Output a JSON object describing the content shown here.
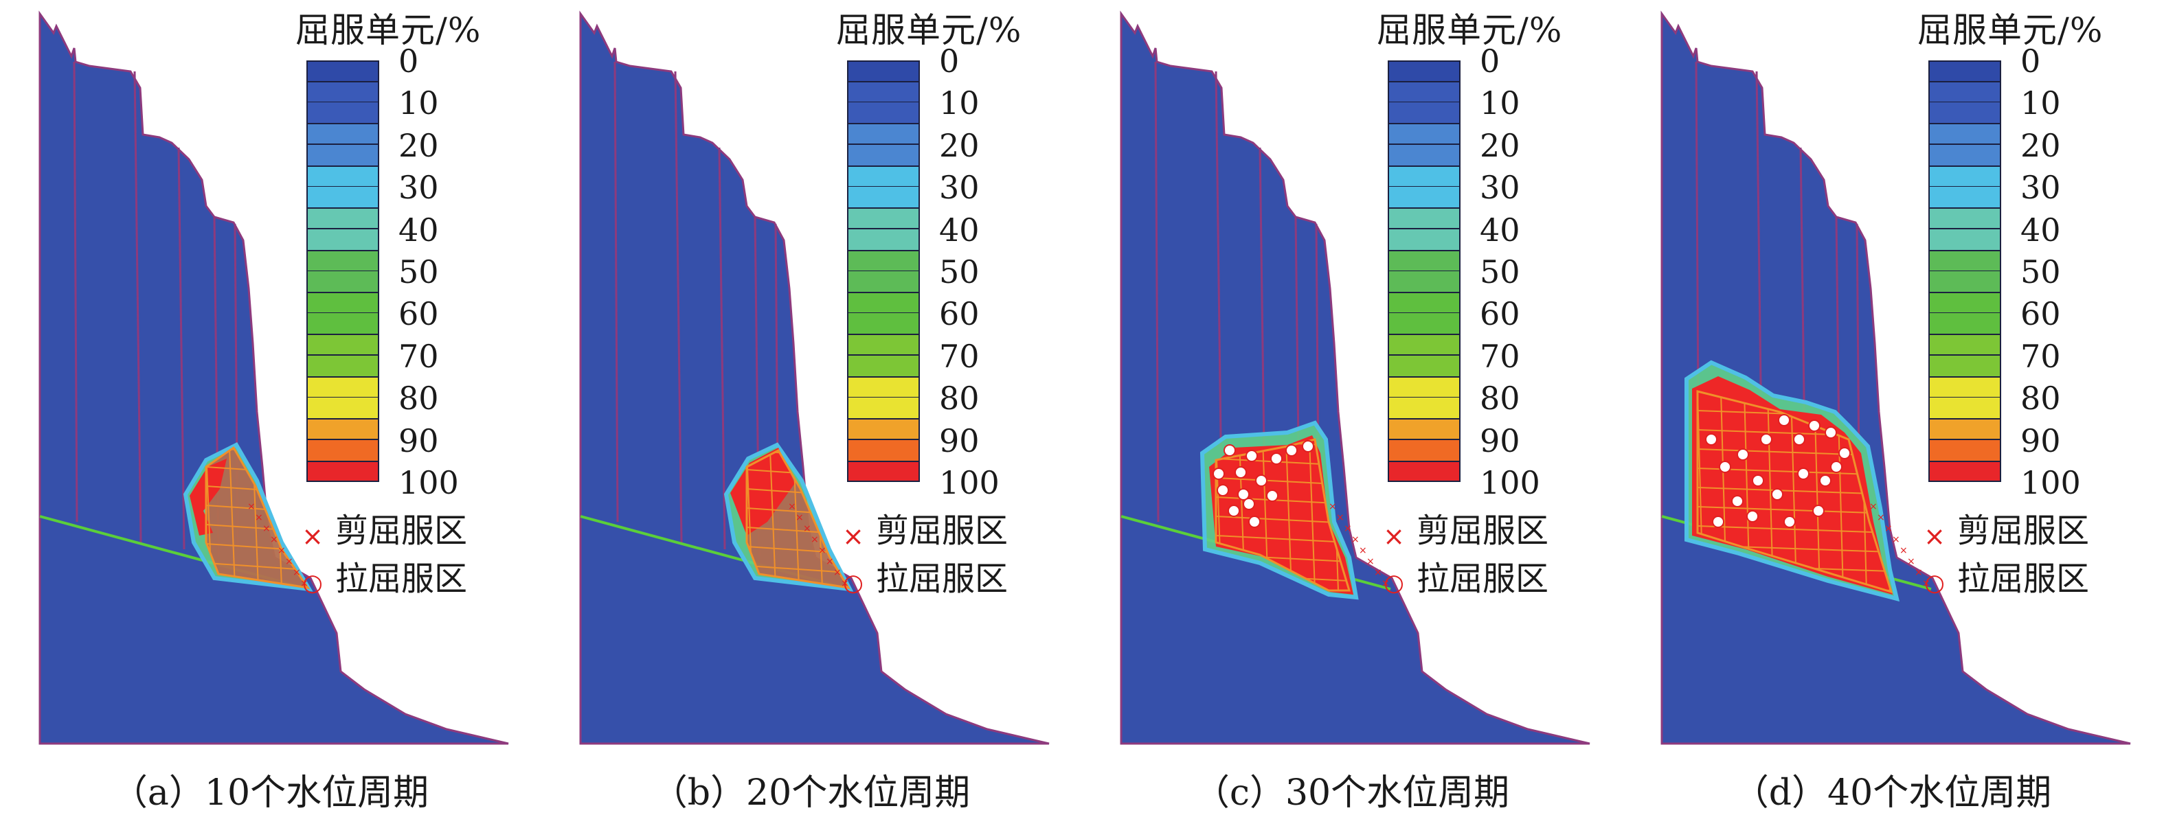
{
  "legend": {
    "title": "屈服单元/%",
    "ticks": [
      "0",
      "10",
      "20",
      "30",
      "40",
      "50",
      "60",
      "70",
      "80",
      "90",
      "100"
    ],
    "shear_label": "剪屈服区",
    "tension_label": "拉屈服区",
    "shear_symbol": "×",
    "tension_symbol": "○"
  },
  "colors": {
    "colorbar": [
      "#2f4aa8",
      "#3a5ab8",
      "#4b86d1",
      "#4fc0e6",
      "#66c8b2",
      "#5dbb57",
      "#5fbf3f",
      "#7dc636",
      "#e9e331",
      "#f0a22a",
      "#f06a24",
      "#e8262a"
    ],
    "rock": "#3650aa",
    "boundary": "#8e3a7d",
    "sliding_surface": "#5bcf3a",
    "yield": "#ee2727",
    "grid": "#f0902a",
    "marker": "#e02020"
  },
  "panels": [
    {
      "id": "a",
      "caption": "（a）10个水位周期",
      "cycles": 10
    },
    {
      "id": "b",
      "caption": "（b）20个水位周期",
      "cycles": 20
    },
    {
      "id": "c",
      "caption": "（c）30个水位周期",
      "cycles": 30
    },
    {
      "id": "d",
      "caption": "（d）40个水位周期",
      "cycles": 40
    }
  ]
}
